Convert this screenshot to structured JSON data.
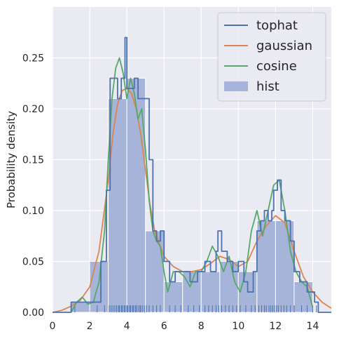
{
  "chart_data": {
    "type": "line",
    "title": "",
    "xlabel": "",
    "ylabel": "Probability density",
    "xlim": [
      0,
      15
    ],
    "ylim": [
      0,
      0.3
    ],
    "xticks": [
      "0",
      "2",
      "4",
      "6",
      "8",
      "10",
      "12",
      "14"
    ],
    "yticks": [
      "0.00",
      "0.05",
      "0.10",
      "0.15",
      "0.20",
      "0.25"
    ],
    "grid": true,
    "legend_position": "top-right",
    "histogram": {
      "name": "hist",
      "color": "#a5b4d8",
      "bins": [
        {
          "x0": 1,
          "x1": 2,
          "value": 0.01
        },
        {
          "x0": 2,
          "x1": 3,
          "value": 0.05
        },
        {
          "x0": 3,
          "x1": 4,
          "value": 0.21
        },
        {
          "x0": 4,
          "x1": 5,
          "value": 0.23
        },
        {
          "x0": 5,
          "x1": 6,
          "value": 0.08
        },
        {
          "x0": 6,
          "x1": 7,
          "value": 0.03
        },
        {
          "x0": 7,
          "x1": 8,
          "value": 0.04
        },
        {
          "x0": 8,
          "x1": 9,
          "value": 0.04
        },
        {
          "x0": 9,
          "x1": 10,
          "value": 0.05
        },
        {
          "x0": 10,
          "x1": 11,
          "value": 0.04
        },
        {
          "x0": 11,
          "x1": 12,
          "value": 0.09
        },
        {
          "x0": 12,
          "x1": 13,
          "value": 0.09
        },
        {
          "x0": 13,
          "x1": 14,
          "value": 0.03
        }
      ]
    },
    "series": [
      {
        "name": "tophat",
        "color": "#4c72b0",
        "step": true,
        "x": [
          0,
          1,
          1.2,
          2.0,
          2.6,
          2.9,
          3.1,
          3.5,
          3.7,
          3.8,
          3.9,
          4.0,
          4.2,
          4.4,
          4.6,
          4.9,
          5.2,
          5.4,
          5.6,
          5.8,
          6.0,
          6.3,
          6.6,
          6.9,
          7.4,
          7.8,
          8.2,
          8.5,
          8.8,
          8.9,
          9.1,
          9.4,
          9.7,
          10.0,
          10.3,
          10.5,
          10.8,
          11.0,
          11.2,
          11.4,
          11.6,
          11.8,
          11.9,
          12.1,
          12.3,
          12.5,
          12.8,
          13.0,
          13.3,
          13.7,
          14.1,
          14.3,
          15
        ],
        "y": [
          0,
          0.01,
          0.01,
          0.01,
          0.05,
          0.12,
          0.23,
          0.21,
          0.23,
          0.23,
          0.27,
          0.22,
          0.22,
          0.23,
          0.21,
          0.21,
          0.15,
          0.08,
          0.07,
          0.08,
          0.05,
          0.03,
          0.04,
          0.04,
          0.03,
          0.04,
          0.05,
          0.04,
          0.06,
          0.08,
          0.06,
          0.05,
          0.04,
          0.05,
          0.03,
          0.02,
          0.04,
          0.08,
          0.09,
          0.1,
          0.09,
          0.1,
          0.12,
          0.13,
          0.1,
          0.09,
          0.07,
          0.04,
          0.03,
          0.02,
          0.01,
          0.0,
          0.0
        ]
      },
      {
        "name": "gaussian",
        "color": "#dd8452",
        "step": false,
        "x": [
          0,
          0.5,
          1.0,
          1.5,
          2.0,
          2.5,
          3.0,
          3.25,
          3.5,
          3.75,
          4.0,
          4.25,
          4.5,
          4.75,
          5.0,
          5.25,
          5.5,
          6.0,
          6.5,
          7.0,
          7.5,
          8.0,
          8.5,
          9.0,
          9.5,
          10.0,
          10.5,
          11.0,
          11.5,
          12.0,
          12.5,
          13.0,
          13.5,
          14.0,
          14.5,
          15.0
        ],
        "y": [
          0.0,
          0.002,
          0.006,
          0.012,
          0.025,
          0.06,
          0.13,
          0.175,
          0.205,
          0.218,
          0.22,
          0.215,
          0.2,
          0.175,
          0.14,
          0.105,
          0.08,
          0.055,
          0.045,
          0.04,
          0.04,
          0.042,
          0.048,
          0.055,
          0.052,
          0.045,
          0.05,
          0.07,
          0.085,
          0.095,
          0.088,
          0.06,
          0.035,
          0.02,
          0.01,
          0.004
        ]
      },
      {
        "name": "cosine",
        "color": "#55a868",
        "step": false,
        "x": [
          1.0,
          1.3,
          1.6,
          1.9,
          2.2,
          2.5,
          2.8,
          3.0,
          3.2,
          3.4,
          3.6,
          3.8,
          4.0,
          4.2,
          4.4,
          4.6,
          4.8,
          5.0,
          5.2,
          5.4,
          5.6,
          5.8,
          6.0,
          6.2,
          6.5,
          6.8,
          7.1,
          7.4,
          7.7,
          8.0,
          8.3,
          8.6,
          8.9,
          9.2,
          9.5,
          9.8,
          10.1,
          10.4,
          10.7,
          11.0,
          11.3,
          11.6,
          11.9,
          12.2,
          12.5,
          12.8,
          13.1,
          13.4,
          13.7,
          14.0
        ],
        "y": [
          0.0,
          0.01,
          0.015,
          0.008,
          0.01,
          0.03,
          0.08,
          0.15,
          0.21,
          0.24,
          0.25,
          0.235,
          0.21,
          0.23,
          0.215,
          0.19,
          0.2,
          0.16,
          0.11,
          0.08,
          0.07,
          0.065,
          0.04,
          0.02,
          0.04,
          0.04,
          0.035,
          0.025,
          0.04,
          0.04,
          0.05,
          0.065,
          0.055,
          0.04,
          0.055,
          0.03,
          0.02,
          0.04,
          0.08,
          0.1,
          0.075,
          0.1,
          0.125,
          0.13,
          0.1,
          0.06,
          0.04,
          0.03,
          0.025,
          0.005
        ]
      }
    ],
    "rug": [
      1.2,
      2.4,
      2.8,
      3.05,
      3.15,
      3.25,
      3.35,
      3.45,
      3.55,
      3.6,
      3.7,
      3.75,
      3.85,
      3.9,
      4.0,
      4.05,
      4.15,
      4.2,
      4.3,
      4.35,
      4.45,
      4.5,
      4.6,
      4.7,
      4.75,
      4.85,
      4.95,
      5.05,
      5.2,
      5.4,
      5.6,
      5.8,
      6.3,
      6.6,
      6.9,
      7.3,
      7.6,
      7.9,
      8.2,
      8.4,
      8.6,
      8.8,
      8.95,
      9.1,
      9.3,
      9.5,
      9.7,
      9.9,
      10.1,
      10.4,
      10.7,
      10.9,
      11.1,
      11.25,
      11.4,
      11.5,
      11.65,
      11.75,
      11.85,
      11.95,
      12.05,
      12.15,
      12.3,
      12.45,
      12.6,
      12.8,
      13.0,
      13.4,
      13.7,
      14.0,
      14.2
    ],
    "legend": [
      {
        "name": "tophat",
        "kind": "line",
        "color": "#4c72b0"
      },
      {
        "name": "gaussian",
        "kind": "line",
        "color": "#dd8452"
      },
      {
        "name": "cosine",
        "kind": "line",
        "color": "#55a868"
      },
      {
        "name": "hist",
        "kind": "patch",
        "color": "#a5b4d8"
      }
    ]
  }
}
